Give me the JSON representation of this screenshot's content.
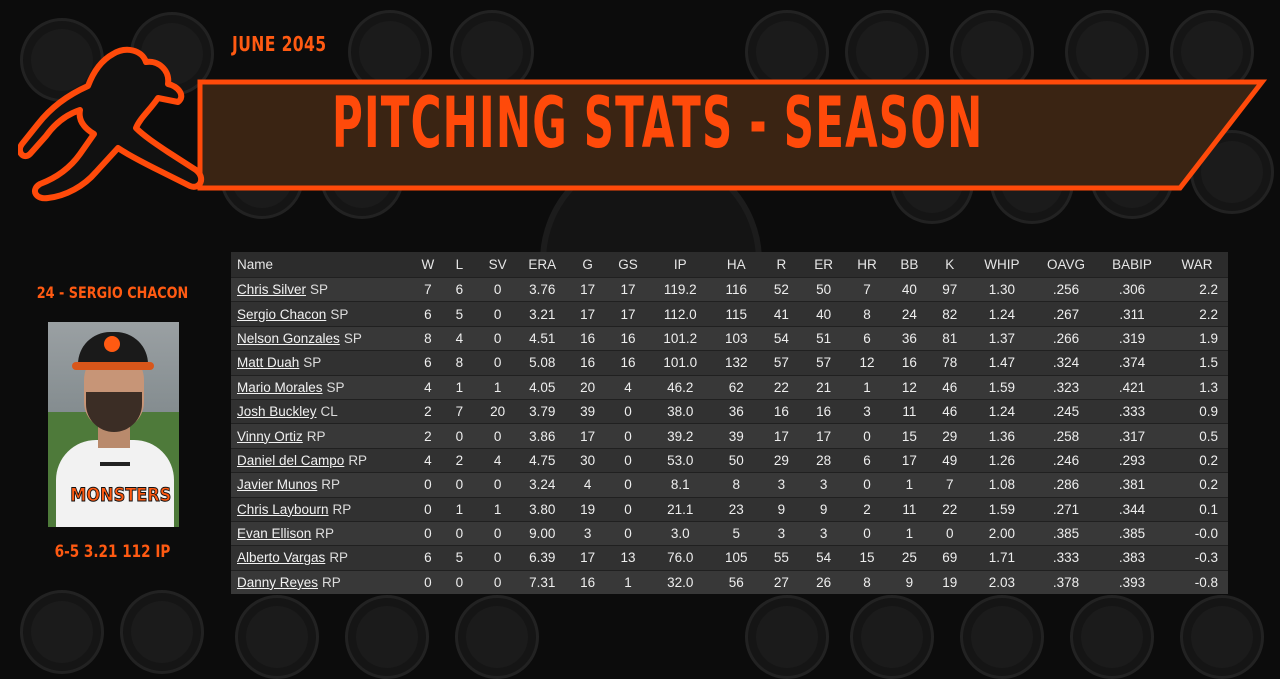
{
  "header": {
    "date": "JUNE 2045",
    "title": "PITCHING STATS - SEASON"
  },
  "colors": {
    "accent": "#ff4a0a",
    "banner_fill": "#3a2413",
    "background": "#0c0c0c"
  },
  "featured_player": {
    "name_line": "24 - SERGIO CHACON",
    "jersey_word": "MONSTERS",
    "stat_line": "6-5 3.21 112 IP"
  },
  "stats_table": {
    "columns": [
      "Name",
      "W",
      "L",
      "SV",
      "ERA",
      "G",
      "GS",
      "IP",
      "HA",
      "R",
      "ER",
      "HR",
      "BB",
      "K",
      "WHIP",
      "OAVG",
      "BABIP",
      "WAR"
    ],
    "rows": [
      {
        "name": "Chris Silver",
        "pos": "SP",
        "W": "7",
        "L": "6",
        "SV": "0",
        "ERA": "3.76",
        "G": "17",
        "GS": "17",
        "IP": "119.2",
        "HA": "116",
        "R": "52",
        "ER": "50",
        "HR": "7",
        "BB": "40",
        "K": "97",
        "WHIP": "1.30",
        "OAVG": ".256",
        "BABIP": ".306",
        "WAR": "2.2"
      },
      {
        "name": "Sergio Chacon",
        "pos": "SP",
        "W": "6",
        "L": "5",
        "SV": "0",
        "ERA": "3.21",
        "G": "17",
        "GS": "17",
        "IP": "112.0",
        "HA": "115",
        "R": "41",
        "ER": "40",
        "HR": "8",
        "BB": "24",
        "K": "82",
        "WHIP": "1.24",
        "OAVG": ".267",
        "BABIP": ".311",
        "WAR": "2.2"
      },
      {
        "name": "Nelson Gonzales",
        "pos": "SP",
        "W": "8",
        "L": "4",
        "SV": "0",
        "ERA": "4.51",
        "G": "16",
        "GS": "16",
        "IP": "101.2",
        "HA": "103",
        "R": "54",
        "ER": "51",
        "HR": "6",
        "BB": "36",
        "K": "81",
        "WHIP": "1.37",
        "OAVG": ".266",
        "BABIP": ".319",
        "WAR": "1.9"
      },
      {
        "name": "Matt Duah",
        "pos": "SP",
        "W": "6",
        "L": "8",
        "SV": "0",
        "ERA": "5.08",
        "G": "16",
        "GS": "16",
        "IP": "101.0",
        "HA": "132",
        "R": "57",
        "ER": "57",
        "HR": "12",
        "BB": "16",
        "K": "78",
        "WHIP": "1.47",
        "OAVG": ".324",
        "BABIP": ".374",
        "WAR": "1.5"
      },
      {
        "name": "Mario Morales",
        "pos": "SP",
        "W": "4",
        "L": "1",
        "SV": "1",
        "ERA": "4.05",
        "G": "20",
        "GS": "4",
        "IP": "46.2",
        "HA": "62",
        "R": "22",
        "ER": "21",
        "HR": "1",
        "BB": "12",
        "K": "46",
        "WHIP": "1.59",
        "OAVG": ".323",
        "BABIP": ".421",
        "WAR": "1.3"
      },
      {
        "name": "Josh Buckley",
        "pos": "CL",
        "W": "2",
        "L": "7",
        "SV": "20",
        "ERA": "3.79",
        "G": "39",
        "GS": "0",
        "IP": "38.0",
        "HA": "36",
        "R": "16",
        "ER": "16",
        "HR": "3",
        "BB": "11",
        "K": "46",
        "WHIP": "1.24",
        "OAVG": ".245",
        "BABIP": ".333",
        "WAR": "0.9"
      },
      {
        "name": "Vinny Ortiz",
        "pos": "RP",
        "W": "2",
        "L": "0",
        "SV": "0",
        "ERA": "3.86",
        "G": "17",
        "GS": "0",
        "IP": "39.2",
        "HA": "39",
        "R": "17",
        "ER": "17",
        "HR": "0",
        "BB": "15",
        "K": "29",
        "WHIP": "1.36",
        "OAVG": ".258",
        "BABIP": ".317",
        "WAR": "0.5"
      },
      {
        "name": "Daniel del Campo",
        "pos": "RP",
        "W": "4",
        "L": "2",
        "SV": "4",
        "ERA": "4.75",
        "G": "30",
        "GS": "0",
        "IP": "53.0",
        "HA": "50",
        "R": "29",
        "ER": "28",
        "HR": "6",
        "BB": "17",
        "K": "49",
        "WHIP": "1.26",
        "OAVG": ".246",
        "BABIP": ".293",
        "WAR": "0.2"
      },
      {
        "name": "Javier Munos",
        "pos": "RP",
        "W": "0",
        "L": "0",
        "SV": "0",
        "ERA": "3.24",
        "G": "4",
        "GS": "0",
        "IP": "8.1",
        "HA": "8",
        "R": "3",
        "ER": "3",
        "HR": "0",
        "BB": "1",
        "K": "7",
        "WHIP": "1.08",
        "OAVG": ".286",
        "BABIP": ".381",
        "WAR": "0.2"
      },
      {
        "name": "Chris Laybourn",
        "pos": "RP",
        "W": "0",
        "L": "1",
        "SV": "1",
        "ERA": "3.80",
        "G": "19",
        "GS": "0",
        "IP": "21.1",
        "HA": "23",
        "R": "9",
        "ER": "9",
        "HR": "2",
        "BB": "11",
        "K": "22",
        "WHIP": "1.59",
        "OAVG": ".271",
        "BABIP": ".344",
        "WAR": "0.1"
      },
      {
        "name": "Evan Ellison",
        "pos": "RP",
        "W": "0",
        "L": "0",
        "SV": "0",
        "ERA": "9.00",
        "G": "3",
        "GS": "0",
        "IP": "3.0",
        "HA": "5",
        "R": "3",
        "ER": "3",
        "HR": "0",
        "BB": "1",
        "K": "0",
        "WHIP": "2.00",
        "OAVG": ".385",
        "BABIP": ".385",
        "WAR": "-0.0"
      },
      {
        "name": "Alberto Vargas",
        "pos": "RP",
        "W": "6",
        "L": "5",
        "SV": "0",
        "ERA": "6.39",
        "G": "17",
        "GS": "13",
        "IP": "76.0",
        "HA": "105",
        "R": "55",
        "ER": "54",
        "HR": "15",
        "BB": "25",
        "K": "69",
        "WHIP": "1.71",
        "OAVG": ".333",
        "BABIP": ".383",
        "WAR": "-0.3"
      },
      {
        "name": "Danny Reyes",
        "pos": "RP",
        "W": "0",
        "L": "0",
        "SV": "0",
        "ERA": "7.31",
        "G": "16",
        "GS": "1",
        "IP": "32.0",
        "HA": "56",
        "R": "27",
        "ER": "26",
        "HR": "8",
        "BB": "9",
        "K": "19",
        "WHIP": "2.03",
        "OAVG": ".378",
        "BABIP": ".393",
        "WAR": "-0.8"
      }
    ]
  }
}
